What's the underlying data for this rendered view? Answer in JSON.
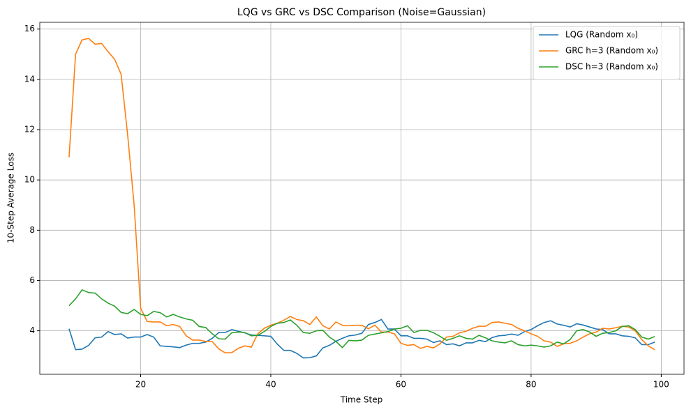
{
  "chart_data": {
    "type": "line",
    "title": "LQG vs GRC vs DSC Comparison (Noise=Gaussian)",
    "xlabel": "Time Step",
    "ylabel": "10-Step Average Loss",
    "x": [
      9,
      10,
      11,
      12,
      13,
      14,
      15,
      16,
      17,
      18,
      19,
      20,
      21,
      22,
      23,
      24,
      25,
      26,
      27,
      28,
      29,
      30,
      31,
      32,
      33,
      34,
      35,
      36,
      37,
      38,
      39,
      40,
      41,
      42,
      43,
      44,
      45,
      46,
      47,
      48,
      49,
      50,
      51,
      52,
      53,
      54,
      55,
      56,
      57,
      58,
      59,
      60,
      61,
      62,
      63,
      64,
      65,
      66,
      67,
      68,
      69,
      70,
      71,
      72,
      73,
      74,
      75,
      76,
      77,
      78,
      79,
      80,
      81,
      82,
      83,
      84,
      85,
      86,
      87,
      88,
      89,
      90,
      91,
      92,
      93,
      94,
      95,
      96,
      97,
      98,
      99
    ],
    "series": [
      {
        "name": "LQG (Random x₀)",
        "color": "#1f77b4",
        "values": [
          4.08,
          3.25,
          3.27,
          3.42,
          3.72,
          3.75,
          3.97,
          3.85,
          3.88,
          3.71,
          3.75,
          3.75,
          3.85,
          3.75,
          3.4,
          3.38,
          3.36,
          3.33,
          3.43,
          3.5,
          3.5,
          3.55,
          3.7,
          3.93,
          3.93,
          4.05,
          3.98,
          3.92,
          3.83,
          3.82,
          3.8,
          3.78,
          3.47,
          3.22,
          3.22,
          3.1,
          2.92,
          2.93,
          3.0,
          3.32,
          3.42,
          3.58,
          3.7,
          3.8,
          3.83,
          3.9,
          4.25,
          4.33,
          4.45,
          4.07,
          4.07,
          3.8,
          3.8,
          3.7,
          3.7,
          3.67,
          3.53,
          3.6,
          3.45,
          3.48,
          3.4,
          3.52,
          3.52,
          3.62,
          3.57,
          3.73,
          3.8,
          3.82,
          3.87,
          3.82,
          3.97,
          4.05,
          4.2,
          4.33,
          4.4,
          4.27,
          4.22,
          4.15,
          4.28,
          4.23,
          4.15,
          4.07,
          4.05,
          3.88,
          3.88,
          3.8,
          3.78,
          3.72,
          3.45,
          3.45,
          3.55
        ]
      },
      {
        "name": "GRC h=3 (Random x₀)",
        "color": "#ff7f0e",
        "values": [
          10.9,
          15.0,
          15.57,
          15.63,
          15.4,
          15.43,
          15.1,
          14.8,
          14.2,
          11.8,
          9.0,
          4.9,
          4.37,
          4.35,
          4.35,
          4.2,
          4.25,
          4.17,
          3.8,
          3.63,
          3.63,
          3.58,
          3.57,
          3.28,
          3.12,
          3.13,
          3.3,
          3.4,
          3.35,
          3.88,
          4.1,
          4.22,
          4.3,
          4.42,
          4.57,
          4.45,
          4.4,
          4.25,
          4.55,
          4.2,
          4.07,
          4.35,
          4.22,
          4.2,
          4.22,
          4.22,
          4.08,
          4.22,
          3.95,
          3.95,
          3.88,
          3.5,
          3.42,
          3.45,
          3.3,
          3.38,
          3.32,
          3.48,
          3.75,
          3.78,
          3.92,
          3.98,
          4.1,
          4.18,
          4.18,
          4.33,
          4.35,
          4.3,
          4.25,
          4.1,
          4.0,
          3.88,
          3.78,
          3.6,
          3.55,
          3.38,
          3.48,
          3.5,
          3.6,
          3.75,
          3.88,
          3.95,
          4.1,
          4.07,
          4.12,
          4.18,
          4.15,
          4.0,
          3.65,
          3.4,
          3.25
        ]
      },
      {
        "name": "DSC h=3 (Random x₀)",
        "color": "#2ca02c",
        "values": [
          5.0,
          5.27,
          5.63,
          5.52,
          5.5,
          5.27,
          5.1,
          4.98,
          4.73,
          4.68,
          4.85,
          4.65,
          4.6,
          4.77,
          4.72,
          4.55,
          4.65,
          4.55,
          4.47,
          4.42,
          4.17,
          4.13,
          3.88,
          3.68,
          3.67,
          3.92,
          3.95,
          3.93,
          3.8,
          3.82,
          3.97,
          4.17,
          4.3,
          4.33,
          4.43,
          4.22,
          3.93,
          3.9,
          4.0,
          4.02,
          3.75,
          3.58,
          3.33,
          3.62,
          3.6,
          3.63,
          3.82,
          3.87,
          3.92,
          3.97,
          4.07,
          4.1,
          4.2,
          3.93,
          4.02,
          4.02,
          3.92,
          3.78,
          3.62,
          3.7,
          3.8,
          3.7,
          3.67,
          3.82,
          3.72,
          3.6,
          3.55,
          3.52,
          3.6,
          3.45,
          3.4,
          3.43,
          3.4,
          3.35,
          3.4,
          3.55,
          3.48,
          3.65,
          4.0,
          4.05,
          3.95,
          3.78,
          3.9,
          3.93,
          4.0,
          4.17,
          4.2,
          4.05,
          3.75,
          3.67,
          3.77
        ]
      }
    ],
    "xlim": [
      4.5,
      103.5
    ],
    "ylim": [
      2.27,
      16.27
    ],
    "xticks": [
      20,
      40,
      60,
      80,
      100
    ],
    "yticks": [
      4,
      6,
      8,
      10,
      12,
      14,
      16
    ],
    "grid": true,
    "legend": "upper right"
  }
}
